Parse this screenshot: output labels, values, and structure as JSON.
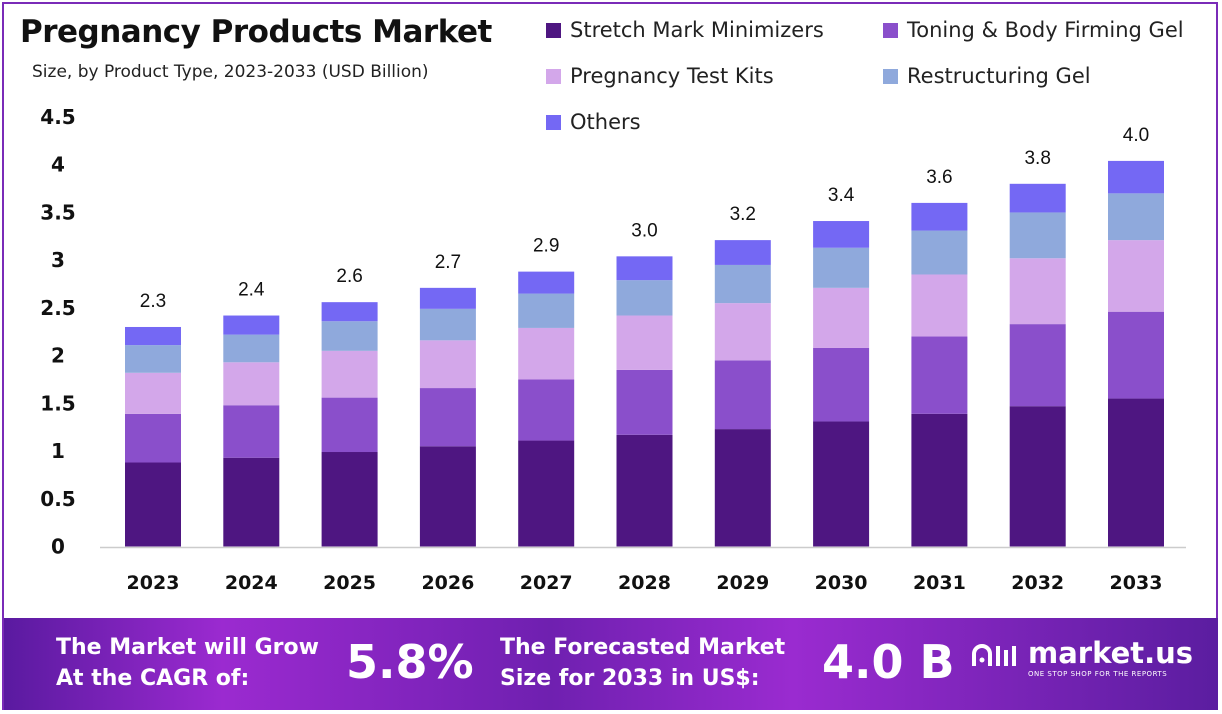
{
  "chart_data": {
    "type": "bar",
    "stacked": true,
    "title": "Pregnancy Products Market",
    "subtitle": "Size, by Product Type, 2023-2033 (USD Billion)",
    "categories": [
      "2023",
      "2024",
      "2025",
      "2026",
      "2027",
      "2028",
      "2029",
      "2030",
      "2031",
      "2032",
      "2033"
    ],
    "series": [
      {
        "name": "Stretch Mark Minimizers",
        "color": "#4e1681",
        "values": [
          0.88,
          0.93,
          0.99,
          1.05,
          1.11,
          1.17,
          1.23,
          1.31,
          1.39,
          1.47,
          1.55
        ]
      },
      {
        "name": "Toning & Body Firming Gel",
        "color": "#8a4fcb",
        "values": [
          0.51,
          0.55,
          0.57,
          0.61,
          0.64,
          0.68,
          0.72,
          0.77,
          0.81,
          0.86,
          0.91
        ]
      },
      {
        "name": "Pregnancy Test Kits",
        "color": "#d3a7ea",
        "values": [
          0.43,
          0.45,
          0.49,
          0.5,
          0.54,
          0.57,
          0.6,
          0.63,
          0.65,
          0.69,
          0.75
        ]
      },
      {
        "name": "Restructuring Gel",
        "color": "#8fa9dc",
        "values": [
          0.29,
          0.29,
          0.31,
          0.33,
          0.36,
          0.37,
          0.4,
          0.42,
          0.46,
          0.48,
          0.49
        ]
      },
      {
        "name": "Others",
        "color": "#7468f4",
        "values": [
          0.19,
          0.2,
          0.2,
          0.22,
          0.23,
          0.25,
          0.26,
          0.28,
          0.29,
          0.3,
          0.34
        ]
      }
    ],
    "totals_labels": [
      "2.3",
      "2.4",
      "2.6",
      "2.7",
      "2.9",
      "3.0",
      "3.2",
      "3.4",
      "3.6",
      "3.8",
      "4.0"
    ],
    "y_ticks": [
      "0",
      "0.5",
      "1",
      "1.5",
      "2",
      "2.5",
      "3",
      "3.5",
      "4",
      "4.5"
    ],
    "ylim": [
      0,
      4.5
    ],
    "grid": false,
    "legend_position": "top-right"
  },
  "footer": {
    "cagr_text_1": "The Market will Grow",
    "cagr_text_2": "At the CAGR of:",
    "cagr_value": "5.8%",
    "forecast_text_1": "The Forecasted Market",
    "forecast_text_2": "Size for 2033 in US$:",
    "forecast_value": "4.0 B",
    "brand": "market.us",
    "tagline": "ONE STOP SHOP FOR THE REPORTS"
  }
}
